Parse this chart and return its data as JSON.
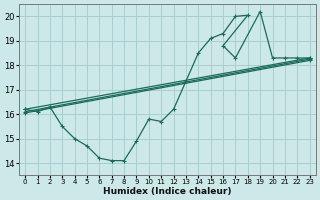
{
  "xlabel": "Humidex (Indice chaleur)",
  "bg_color": "#cde8e8",
  "grid_color": "#aacfcf",
  "line_color": "#1a6b5a",
  "xlim": [
    -0.5,
    23.5
  ],
  "ylim": [
    13.5,
    20.5
  ],
  "xticks": [
    0,
    1,
    2,
    3,
    4,
    5,
    6,
    7,
    8,
    9,
    10,
    11,
    12,
    13,
    14,
    15,
    16,
    17,
    18,
    19,
    20,
    21,
    22,
    23
  ],
  "yticks": [
    14,
    15,
    16,
    17,
    18,
    19,
    20
  ],
  "main_curve_x": [
    0,
    1,
    2,
    3,
    4,
    5,
    6,
    7,
    8,
    9,
    10,
    11,
    12,
    13,
    14,
    15,
    16,
    17,
    18,
    16,
    17,
    19,
    20,
    21,
    22,
    23
  ],
  "main_curve_y": [
    16.2,
    16.1,
    16.3,
    15.5,
    15.0,
    14.7,
    14.2,
    14.1,
    14.1,
    14.9,
    15.8,
    15.7,
    16.2,
    17.35,
    18.5,
    19.1,
    19.3,
    20.0,
    20.05,
    18.8,
    18.3,
    20.2,
    18.3,
    18.3,
    18.3,
    18.3
  ],
  "trend1_x": [
    0,
    23
  ],
  "trend1_y": [
    16.2,
    18.3
  ],
  "trend2_x": [
    0,
    23
  ],
  "trend2_y": [
    16.1,
    18.25
  ],
  "trend3_x": [
    0,
    23
  ],
  "trend3_y": [
    16.05,
    18.2
  ]
}
